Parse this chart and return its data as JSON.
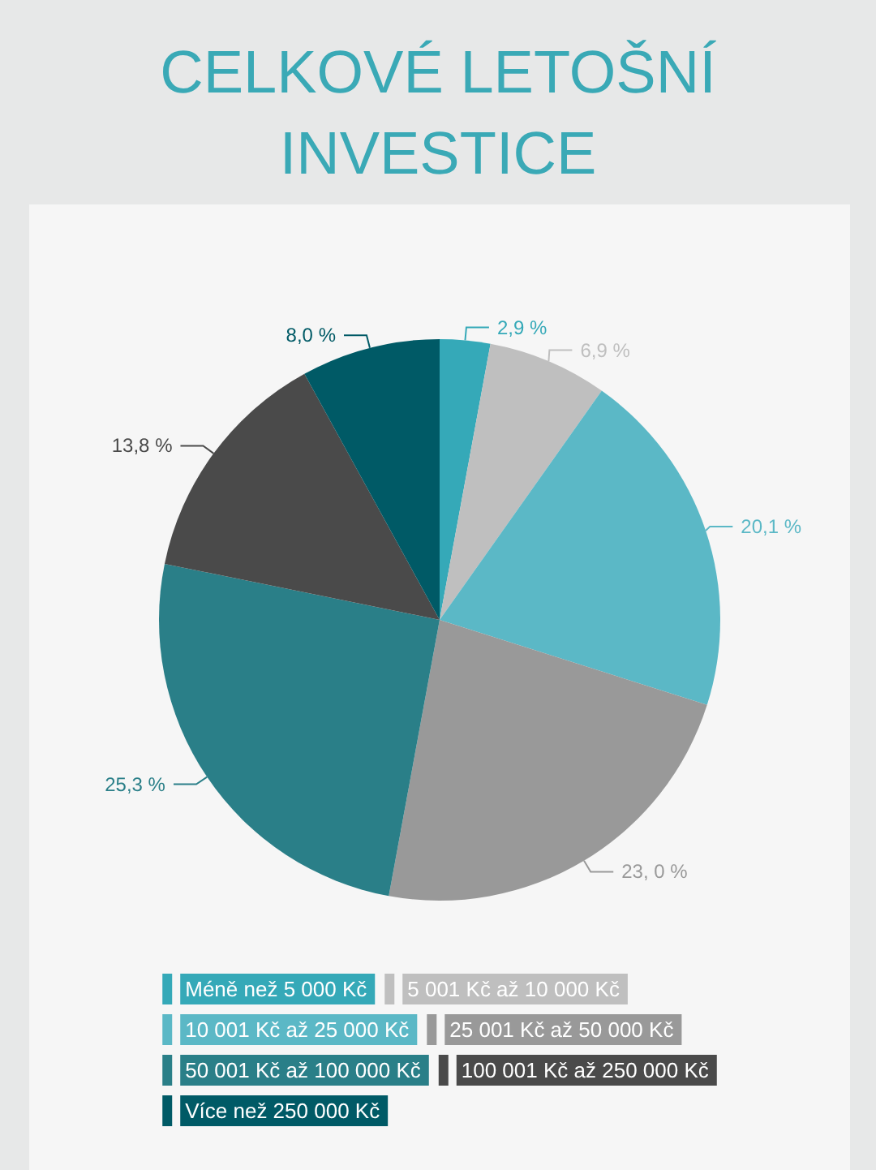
{
  "chart_data": {
    "type": "pie",
    "title": "CELKOVÉ LETOŠNÍ INVESTICE",
    "categories": [
      "Méně než 5 000 Kč",
      "5 001 Kč až 10 000 Kč",
      "10 001 Kč až 25 000 Kč",
      "25 001 Kč až 50 000 Kč",
      "50 001 Kč až 100 000 Kč",
      "100 001 Kč až 250 000 Kč",
      "Více než 250 000 Kč"
    ],
    "values": [
      2.9,
      6.9,
      20.1,
      23.0,
      25.3,
      13.8,
      8.0
    ],
    "value_labels": [
      "2,9 %",
      "6,9 %",
      "20,1 %",
      "23, 0 %",
      "25,3 %",
      "13,8 %",
      "8,0 %"
    ],
    "colors": [
      "#35a9b8",
      "#bfbfbf",
      "#5bb8c6",
      "#999999",
      "#2a7f88",
      "#4a4a4a",
      "#005a66"
    ],
    "legend": "bottom"
  }
}
